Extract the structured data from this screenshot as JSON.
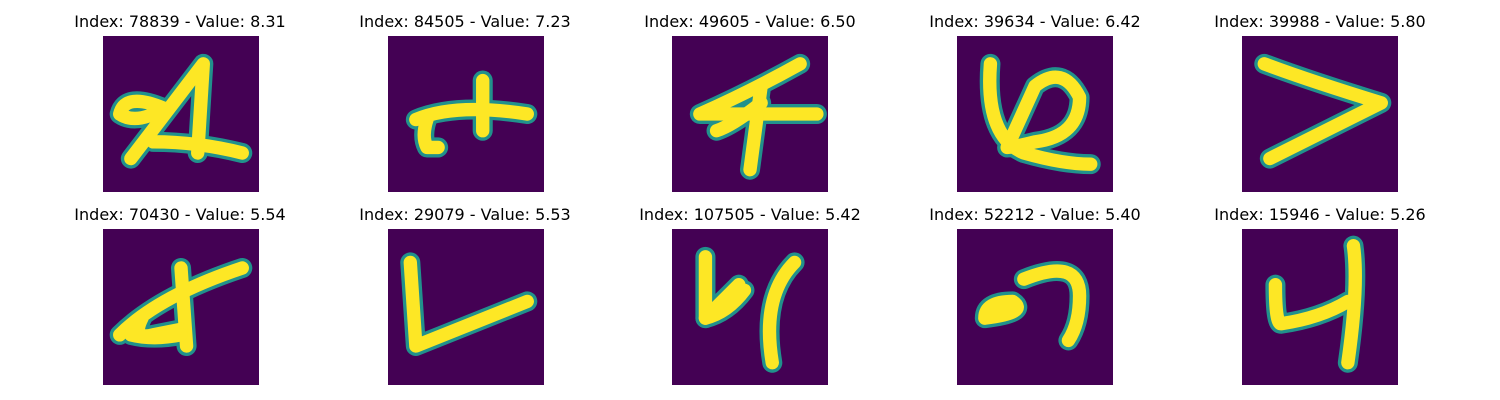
{
  "colors": {
    "background": "#440154",
    "stroke": "#fde725",
    "edge": "#21918c"
  },
  "panels": [
    {
      "title": "Index: 78839 - Value: 8.31",
      "glyph": "A"
    },
    {
      "title": "Index: 84505 - Value: 7.23",
      "glyph": "plus-hook"
    },
    {
      "title": "Index: 49605 - Value: 6.50",
      "glyph": "4"
    },
    {
      "title": "Index: 39634 - Value: 6.42",
      "glyph": "6"
    },
    {
      "title": "Index: 39988 - Value: 5.80",
      "glyph": ">"
    },
    {
      "title": "Index: 70430 - Value: 5.54",
      "glyph": "crossed-loop"
    },
    {
      "title": "Index: 29079 - Value: 5.53",
      "glyph": "L"
    },
    {
      "title": "Index: 107505 - Value: 5.42",
      "glyph": "4-open"
    },
    {
      "title": "Index: 52212 - Value: 5.40",
      "glyph": "loop-arc"
    },
    {
      "title": "Index: 15946 - Value: 5.26",
      "glyph": "4-round"
    }
  ]
}
